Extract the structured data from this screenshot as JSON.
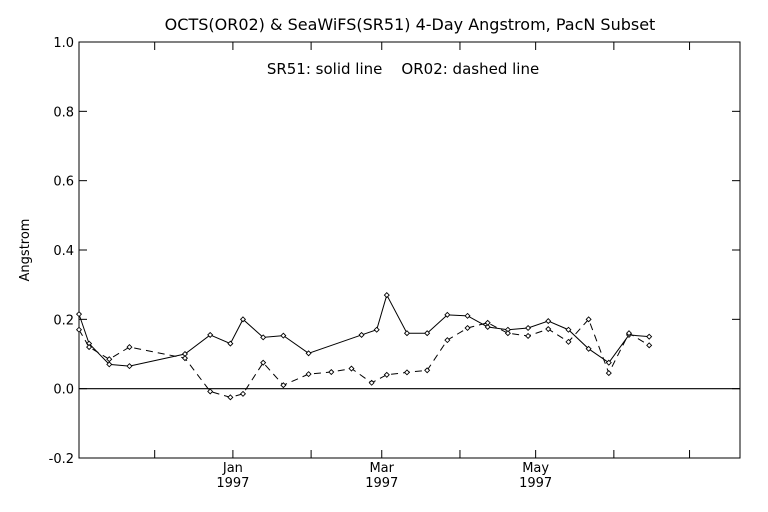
{
  "chart_data": {
    "type": "line",
    "title": "OCTS(OR02) & SeaWiFS(SR51) 4-Day Angstrom, PacN Subset",
    "annotation": "SR51: solid line    OR02: dashed line",
    "xlabel": "",
    "ylabel": "Angstrom",
    "ylim": [
      -0.2,
      1.0
    ],
    "yticks": [
      -0.2,
      0.0,
      0.2,
      0.4,
      0.6,
      0.8,
      1.0
    ],
    "ytick_labels": [
      "-0.2",
      "0.0",
      "0.2",
      "0.4",
      "0.6",
      "0.8",
      "1.0"
    ],
    "xlim": [
      "1996-11-01",
      "1997-07-21"
    ],
    "xticks": [
      {
        "date": "1996-12-01",
        "label": "",
        "sub": ""
      },
      {
        "date": "1997-01-01",
        "label": "Jan",
        "sub": "1997"
      },
      {
        "date": "1997-02-01",
        "label": "",
        "sub": ""
      },
      {
        "date": "1997-03-01",
        "label": "Mar",
        "sub": "1997"
      },
      {
        "date": "1997-04-01",
        "label": "",
        "sub": ""
      },
      {
        "date": "1997-05-01",
        "label": "May",
        "sub": "1997"
      },
      {
        "date": "1997-06-01",
        "label": "",
        "sub": ""
      },
      {
        "date": "1997-07-01",
        "label": "",
        "sub": ""
      }
    ],
    "reference_line_y": 0.0,
    "series": [
      {
        "name": "SR51",
        "style": "solid",
        "points": [
          [
            "1996-11-01",
            0.215
          ],
          [
            "1996-11-05",
            0.13
          ],
          [
            "1996-11-13",
            0.07
          ],
          [
            "1996-11-21",
            0.065
          ],
          [
            "1996-12-13",
            0.1
          ],
          [
            "1996-12-23",
            0.155
          ],
          [
            "1996-12-31",
            0.13
          ],
          [
            "1997-01-05",
            0.2
          ],
          [
            "1997-01-13",
            0.148
          ],
          [
            "1997-01-21",
            0.153
          ],
          [
            "1997-01-31",
            0.102
          ],
          [
            "1997-02-21",
            0.155
          ],
          [
            "1997-02-27",
            0.17
          ],
          [
            "1997-03-03",
            0.27
          ],
          [
            "1997-03-11",
            0.16
          ],
          [
            "1997-03-19",
            0.16
          ],
          [
            "1997-03-27",
            0.213
          ],
          [
            "1997-04-04",
            0.21
          ],
          [
            "1997-04-12",
            0.178
          ],
          [
            "1997-04-20",
            0.17
          ],
          [
            "1997-04-28",
            0.175
          ],
          [
            "1997-05-06",
            0.195
          ],
          [
            "1997-05-14",
            0.17
          ],
          [
            "1997-05-22",
            0.115
          ],
          [
            "1997-05-30",
            0.075
          ],
          [
            "1997-06-07",
            0.155
          ],
          [
            "1997-06-15",
            0.15
          ]
        ]
      },
      {
        "name": "OR02",
        "style": "dashed",
        "points": [
          [
            "1996-11-01",
            0.17
          ],
          [
            "1996-11-05",
            0.12
          ],
          [
            "1996-11-13",
            0.085
          ],
          [
            "1996-11-21",
            0.12
          ],
          [
            "1996-12-13",
            0.088
          ],
          [
            "1996-12-23",
            -0.008
          ],
          [
            "1996-12-31",
            -0.025
          ],
          [
            "1997-01-05",
            -0.015
          ],
          [
            "1997-01-13",
            0.075
          ],
          [
            "1997-01-21",
            0.01
          ],
          [
            "1997-01-31",
            0.042
          ],
          [
            "1997-02-09",
            0.048
          ],
          [
            "1997-02-17",
            0.058
          ],
          [
            "1997-02-25",
            0.017
          ],
          [
            "1997-03-03",
            0.04
          ],
          [
            "1997-03-11",
            0.047
          ],
          [
            "1997-03-19",
            0.053
          ],
          [
            "1997-03-27",
            0.14
          ],
          [
            "1997-04-04",
            0.175
          ],
          [
            "1997-04-12",
            0.19
          ],
          [
            "1997-04-20",
            0.16
          ],
          [
            "1997-04-28",
            0.152
          ],
          [
            "1997-05-06",
            0.172
          ],
          [
            "1997-05-14",
            0.135
          ],
          [
            "1997-05-22",
            0.2
          ],
          [
            "1997-05-30",
            0.045
          ],
          [
            "1997-06-07",
            0.16
          ],
          [
            "1997-06-15",
            0.125
          ]
        ]
      }
    ]
  }
}
